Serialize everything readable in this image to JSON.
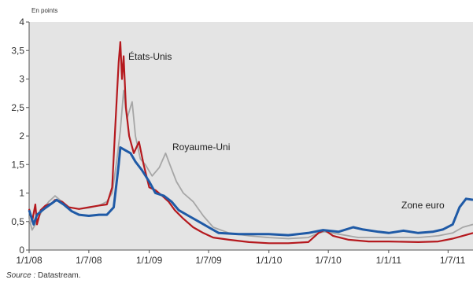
{
  "chart_data": {
    "type": "line",
    "unit_label": "En points",
    "source_prefix": "Source : ",
    "source_name": "Datastream.",
    "ylim": [
      0,
      4
    ],
    "y_ticks": [
      "0",
      "0,5",
      "1",
      "1,5",
      "2",
      "2,5",
      "3",
      "3,5",
      "4"
    ],
    "x_ticks": [
      "1/1/08",
      "1/7/08",
      "1/1/09",
      "1/7/09",
      "1/1/10",
      "1/7/10",
      "1/1/11",
      "1/7/11"
    ],
    "x_range": [
      "2008-01-01",
      "2011-09-15"
    ],
    "grid": false,
    "background_color": "#e4e4e4",
    "series": [
      {
        "name": "États-Unis",
        "color": "#b5191e",
        "points": [
          [
            "2008-01-01",
            0.72
          ],
          [
            "2008-01-10",
            0.5
          ],
          [
            "2008-01-20",
            0.8
          ],
          [
            "2008-01-25",
            0.45
          ],
          [
            "2008-02-05",
            0.7
          ],
          [
            "2008-02-20",
            0.78
          ],
          [
            "2008-03-10",
            0.82
          ],
          [
            "2008-03-20",
            0.88
          ],
          [
            "2008-04-10",
            0.85
          ],
          [
            "2008-05-01",
            0.75
          ],
          [
            "2008-06-01",
            0.72
          ],
          [
            "2008-07-01",
            0.75
          ],
          [
            "2008-08-01",
            0.78
          ],
          [
            "2008-08-25",
            0.8
          ],
          [
            "2008-09-10",
            1.1
          ],
          [
            "2008-09-20",
            2.2
          ],
          [
            "2008-09-30",
            3.3
          ],
          [
            "2008-10-05",
            3.65
          ],
          [
            "2008-10-10",
            3.0
          ],
          [
            "2008-10-15",
            3.4
          ],
          [
            "2008-10-22",
            2.5
          ],
          [
            "2008-11-01",
            2.0
          ],
          [
            "2008-11-15",
            1.7
          ],
          [
            "2008-12-01",
            1.9
          ],
          [
            "2008-12-15",
            1.5
          ],
          [
            "2009-01-01",
            1.1
          ],
          [
            "2009-01-20",
            1.05
          ],
          [
            "2009-02-10",
            0.95
          ],
          [
            "2009-03-01",
            0.85
          ],
          [
            "2009-03-20",
            0.7
          ],
          [
            "2009-04-15",
            0.55
          ],
          [
            "2009-05-15",
            0.4
          ],
          [
            "2009-06-15",
            0.3
          ],
          [
            "2009-07-15",
            0.22
          ],
          [
            "2009-09-01",
            0.18
          ],
          [
            "2009-11-01",
            0.14
          ],
          [
            "2010-01-01",
            0.12
          ],
          [
            "2010-03-01",
            0.12
          ],
          [
            "2010-05-01",
            0.14
          ],
          [
            "2010-06-01",
            0.3
          ],
          [
            "2010-06-20",
            0.35
          ],
          [
            "2010-07-15",
            0.25
          ],
          [
            "2010-09-01",
            0.18
          ],
          [
            "2010-11-01",
            0.15
          ],
          [
            "2011-01-01",
            0.15
          ],
          [
            "2011-04-01",
            0.14
          ],
          [
            "2011-06-01",
            0.15
          ],
          [
            "2011-07-15",
            0.2
          ],
          [
            "2011-08-15",
            0.25
          ],
          [
            "2011-09-15",
            0.3
          ]
        ]
      },
      {
        "name": "Royaume-Uni",
        "color": "#a6a6a6",
        "points": [
          [
            "2008-01-01",
            0.55
          ],
          [
            "2008-01-10",
            0.35
          ],
          [
            "2008-01-25",
            0.5
          ],
          [
            "2008-02-10",
            0.7
          ],
          [
            "2008-03-01",
            0.85
          ],
          [
            "2008-03-20",
            0.95
          ],
          [
            "2008-04-10",
            0.85
          ],
          [
            "2008-05-01",
            0.75
          ],
          [
            "2008-06-01",
            0.72
          ],
          [
            "2008-07-01",
            0.74
          ],
          [
            "2008-08-01",
            0.78
          ],
          [
            "2008-08-25",
            0.85
          ],
          [
            "2008-09-10",
            1.0
          ],
          [
            "2008-09-25",
            1.6
          ],
          [
            "2008-10-05",
            2.1
          ],
          [
            "2008-10-15",
            2.8
          ],
          [
            "2008-10-25",
            2.3
          ],
          [
            "2008-11-10",
            2.6
          ],
          [
            "2008-11-20",
            2.0
          ],
          [
            "2008-12-05",
            1.6
          ],
          [
            "2008-12-20",
            1.5
          ],
          [
            "2009-01-10",
            1.3
          ],
          [
            "2009-02-01",
            1.45
          ],
          [
            "2009-02-20",
            1.7
          ],
          [
            "2009-03-05",
            1.5
          ],
          [
            "2009-03-25",
            1.2
          ],
          [
            "2009-04-15",
            1.0
          ],
          [
            "2009-05-15",
            0.85
          ],
          [
            "2009-06-15",
            0.6
          ],
          [
            "2009-07-15",
            0.4
          ],
          [
            "2009-09-01",
            0.3
          ],
          [
            "2009-11-01",
            0.25
          ],
          [
            "2010-01-01",
            0.22
          ],
          [
            "2010-03-01",
            0.2
          ],
          [
            "2010-05-01",
            0.22
          ],
          [
            "2010-06-01",
            0.3
          ],
          [
            "2010-06-20",
            0.32
          ],
          [
            "2010-08-01",
            0.28
          ],
          [
            "2010-10-01",
            0.22
          ],
          [
            "2011-01-01",
            0.22
          ],
          [
            "2011-04-01",
            0.22
          ],
          [
            "2011-06-01",
            0.25
          ],
          [
            "2011-07-15",
            0.3
          ],
          [
            "2011-08-15",
            0.4
          ],
          [
            "2011-09-15",
            0.45
          ]
        ]
      },
      {
        "name": "Zone euro",
        "color": "#1f5aa6",
        "points": [
          [
            "2008-01-01",
            0.7
          ],
          [
            "2008-01-15",
            0.45
          ],
          [
            "2008-01-25",
            0.62
          ],
          [
            "2008-02-15",
            0.72
          ],
          [
            "2008-03-10",
            0.82
          ],
          [
            "2008-03-25",
            0.88
          ],
          [
            "2008-04-15",
            0.8
          ],
          [
            "2008-05-10",
            0.68
          ],
          [
            "2008-06-01",
            0.62
          ],
          [
            "2008-07-01",
            0.6
          ],
          [
            "2008-08-01",
            0.62
          ],
          [
            "2008-08-25",
            0.62
          ],
          [
            "2008-09-15",
            0.75
          ],
          [
            "2008-09-30",
            1.5
          ],
          [
            "2008-10-05",
            1.8
          ],
          [
            "2008-10-20",
            1.75
          ],
          [
            "2008-11-05",
            1.7
          ],
          [
            "2008-11-20",
            1.55
          ],
          [
            "2008-12-10",
            1.4
          ],
          [
            "2009-01-01",
            1.2
          ],
          [
            "2009-01-20",
            1.0
          ],
          [
            "2009-02-15",
            0.95
          ],
          [
            "2009-03-10",
            0.85
          ],
          [
            "2009-04-01",
            0.7
          ],
          [
            "2009-05-01",
            0.6
          ],
          [
            "2009-06-01",
            0.5
          ],
          [
            "2009-07-01",
            0.4
          ],
          [
            "2009-08-01",
            0.3
          ],
          [
            "2009-10-01",
            0.28
          ],
          [
            "2010-01-01",
            0.28
          ],
          [
            "2010-03-01",
            0.26
          ],
          [
            "2010-05-01",
            0.3
          ],
          [
            "2010-06-15",
            0.35
          ],
          [
            "2010-08-01",
            0.32
          ],
          [
            "2010-09-15",
            0.4
          ],
          [
            "2010-10-15",
            0.36
          ],
          [
            "2010-12-01",
            0.32
          ],
          [
            "2011-01-01",
            0.3
          ],
          [
            "2011-02-15",
            0.34
          ],
          [
            "2011-04-01",
            0.3
          ],
          [
            "2011-05-15",
            0.32
          ],
          [
            "2011-06-15",
            0.36
          ],
          [
            "2011-07-15",
            0.45
          ],
          [
            "2011-08-05",
            0.75
          ],
          [
            "2011-08-25",
            0.9
          ],
          [
            "2011-09-15",
            0.88
          ]
        ]
      }
    ]
  }
}
